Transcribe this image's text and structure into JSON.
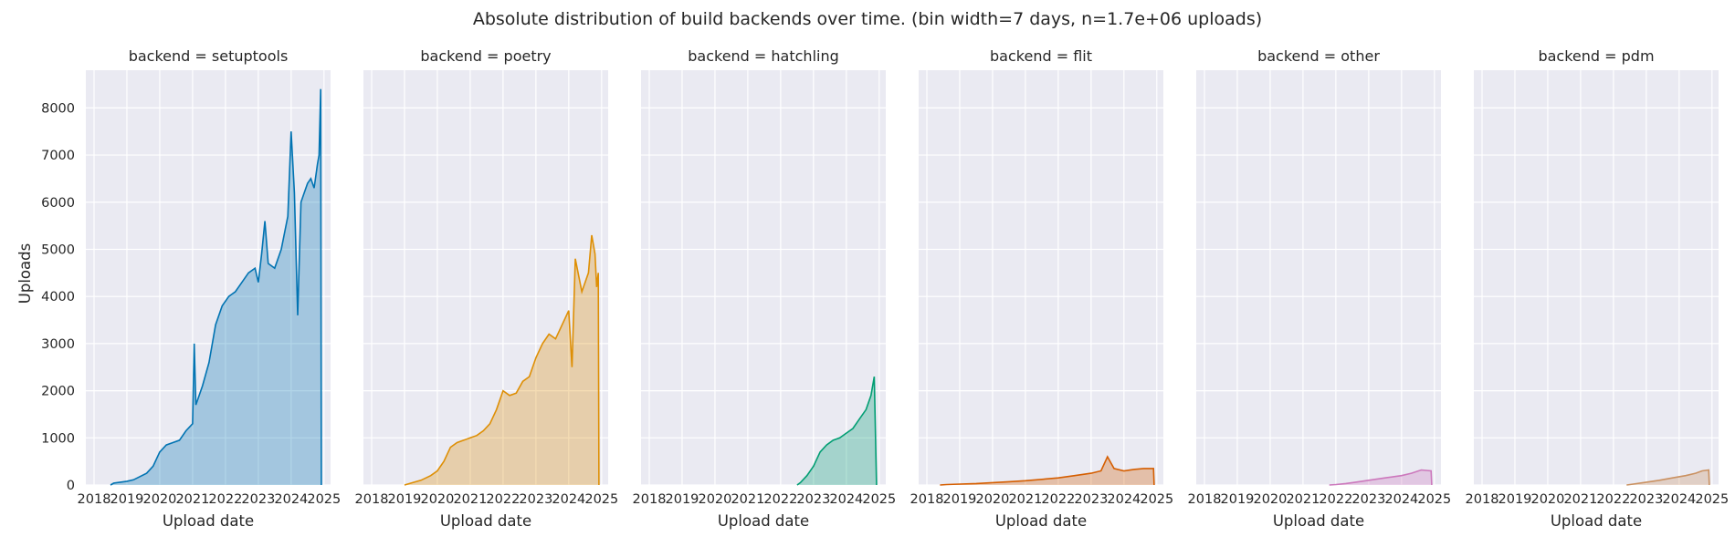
{
  "chart_data": {
    "type": "area",
    "title": "Absolute distribution of build backends over time. (bin width=7 days, n=1.7e+06 uploads)",
    "xlabel": "Upload date",
    "ylabel": "Uploads",
    "xlim": [
      2017.75,
      2025.2
    ],
    "ylim": [
      0,
      8800
    ],
    "x_ticks": [
      "2018",
      "2019",
      "2020",
      "2021",
      "2022",
      "2023",
      "2024",
      "2025"
    ],
    "y_ticks": [
      "0",
      "1000",
      "2000",
      "3000",
      "4000",
      "5000",
      "6000",
      "7000",
      "8000"
    ],
    "grid": true,
    "background_color": "#eaeaf2",
    "panels": [
      {
        "title": "backend = setuptools",
        "color": "#0173b2",
        "points": [
          [
            2018.5,
            0
          ],
          [
            2018.6,
            40
          ],
          [
            2018.8,
            60
          ],
          [
            2019.0,
            80
          ],
          [
            2019.2,
            110
          ],
          [
            2019.4,
            180
          ],
          [
            2019.6,
            250
          ],
          [
            2019.8,
            400
          ],
          [
            2020.0,
            700
          ],
          [
            2020.2,
            850
          ],
          [
            2020.4,
            900
          ],
          [
            2020.6,
            950
          ],
          [
            2020.8,
            1150
          ],
          [
            2021.0,
            1300
          ],
          [
            2021.05,
            3000
          ],
          [
            2021.1,
            1700
          ],
          [
            2021.3,
            2100
          ],
          [
            2021.5,
            2600
          ],
          [
            2021.7,
            3400
          ],
          [
            2021.9,
            3800
          ],
          [
            2022.1,
            4000
          ],
          [
            2022.3,
            4100
          ],
          [
            2022.5,
            4300
          ],
          [
            2022.7,
            4500
          ],
          [
            2022.9,
            4600
          ],
          [
            2023.0,
            4300
          ],
          [
            2023.1,
            4900
          ],
          [
            2023.2,
            5600
          ],
          [
            2023.3,
            4700
          ],
          [
            2023.5,
            4600
          ],
          [
            2023.7,
            5000
          ],
          [
            2023.9,
            5700
          ],
          [
            2024.0,
            7500
          ],
          [
            2024.1,
            6200
          ],
          [
            2024.2,
            3600
          ],
          [
            2024.3,
            6000
          ],
          [
            2024.4,
            6200
          ],
          [
            2024.5,
            6400
          ],
          [
            2024.6,
            6500
          ],
          [
            2024.7,
            6300
          ],
          [
            2024.8,
            6800
          ],
          [
            2024.85,
            7000
          ],
          [
            2024.9,
            8400
          ],
          [
            2024.92,
            0
          ]
        ]
      },
      {
        "title": "backend = poetry",
        "color": "#de8f05",
        "points": [
          [
            2019.0,
            0
          ],
          [
            2019.2,
            40
          ],
          [
            2019.5,
            100
          ],
          [
            2019.8,
            200
          ],
          [
            2020.0,
            300
          ],
          [
            2020.2,
            500
          ],
          [
            2020.4,
            800
          ],
          [
            2020.6,
            900
          ],
          [
            2020.8,
            950
          ],
          [
            2021.0,
            1000
          ],
          [
            2021.2,
            1050
          ],
          [
            2021.4,
            1150
          ],
          [
            2021.6,
            1300
          ],
          [
            2021.8,
            1600
          ],
          [
            2022.0,
            2000
          ],
          [
            2022.2,
            1900
          ],
          [
            2022.4,
            1950
          ],
          [
            2022.6,
            2200
          ],
          [
            2022.8,
            2300
          ],
          [
            2023.0,
            2700
          ],
          [
            2023.2,
            3000
          ],
          [
            2023.4,
            3200
          ],
          [
            2023.6,
            3100
          ],
          [
            2023.8,
            3400
          ],
          [
            2024.0,
            3700
          ],
          [
            2024.1,
            2500
          ],
          [
            2024.2,
            4800
          ],
          [
            2024.4,
            4100
          ],
          [
            2024.6,
            4500
          ],
          [
            2024.7,
            5300
          ],
          [
            2024.8,
            4900
          ],
          [
            2024.85,
            4200
          ],
          [
            2024.9,
            4500
          ],
          [
            2024.92,
            0
          ]
        ]
      },
      {
        "title": "backend = hatchling",
        "color": "#029e73",
        "points": [
          [
            2022.5,
            0
          ],
          [
            2022.6,
            50
          ],
          [
            2022.8,
            200
          ],
          [
            2023.0,
            400
          ],
          [
            2023.2,
            700
          ],
          [
            2023.4,
            850
          ],
          [
            2023.6,
            950
          ],
          [
            2023.8,
            1000
          ],
          [
            2024.0,
            1100
          ],
          [
            2024.2,
            1200
          ],
          [
            2024.4,
            1400
          ],
          [
            2024.6,
            1600
          ],
          [
            2024.75,
            1900
          ],
          [
            2024.85,
            2300
          ],
          [
            2024.92,
            0
          ]
        ]
      },
      {
        "title": "backend = flit",
        "color": "#d55e00",
        "points": [
          [
            2018.4,
            0
          ],
          [
            2018.6,
            10
          ],
          [
            2019.0,
            20
          ],
          [
            2019.5,
            30
          ],
          [
            2020.0,
            50
          ],
          [
            2020.5,
            70
          ],
          [
            2021.0,
            90
          ],
          [
            2021.5,
            120
          ],
          [
            2022.0,
            150
          ],
          [
            2022.5,
            200
          ],
          [
            2023.0,
            250
          ],
          [
            2023.3,
            300
          ],
          [
            2023.5,
            600
          ],
          [
            2023.7,
            350
          ],
          [
            2024.0,
            300
          ],
          [
            2024.3,
            330
          ],
          [
            2024.6,
            350
          ],
          [
            2024.9,
            350
          ],
          [
            2024.92,
            0
          ]
        ]
      },
      {
        "title": "backend = other",
        "color": "#cc78bc",
        "points": [
          [
            2021.8,
            0
          ],
          [
            2022.0,
            10
          ],
          [
            2022.3,
            30
          ],
          [
            2022.6,
            60
          ],
          [
            2023.0,
            100
          ],
          [
            2023.5,
            150
          ],
          [
            2024.0,
            200
          ],
          [
            2024.3,
            250
          ],
          [
            2024.6,
            320
          ],
          [
            2024.9,
            300
          ],
          [
            2024.92,
            0
          ]
        ]
      },
      {
        "title": "backend = pdm",
        "color": "#ca9161",
        "points": [
          [
            2022.4,
            0
          ],
          [
            2022.6,
            20
          ],
          [
            2023.0,
            60
          ],
          [
            2023.4,
            100
          ],
          [
            2023.8,
            150
          ],
          [
            2024.2,
            200
          ],
          [
            2024.5,
            250
          ],
          [
            2024.7,
            300
          ],
          [
            2024.9,
            320
          ],
          [
            2024.92,
            0
          ]
        ]
      }
    ]
  }
}
